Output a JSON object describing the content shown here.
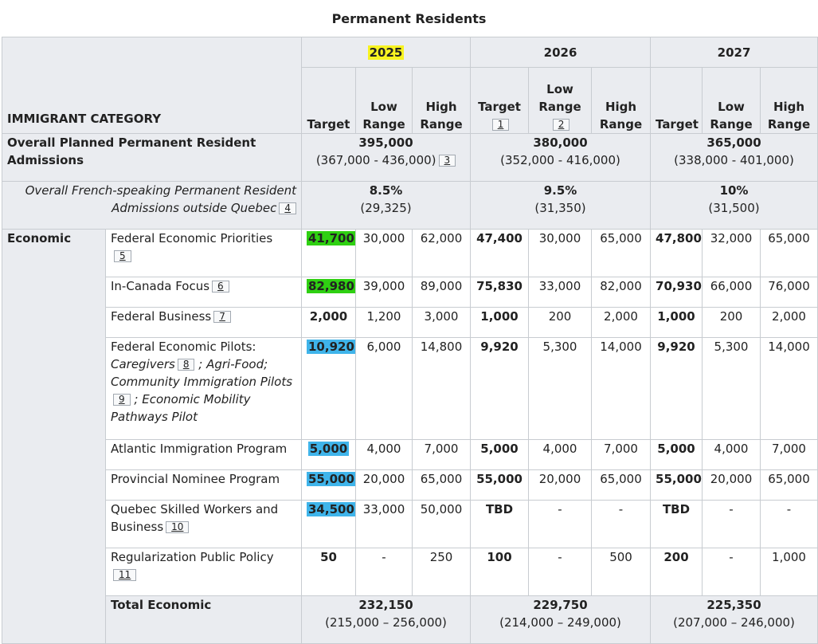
{
  "title": "Permanent Residents",
  "years": [
    "2025",
    "2026",
    "2027"
  ],
  "category_header": "IMMIGRANT CATEGORY",
  "sub_headers": {
    "target": "Target",
    "low": "Low Range",
    "high": "High Range"
  },
  "notes": {
    "n1": "1",
    "n2": "2"
  },
  "overall": {
    "label": "Overall Planned Permanent Resident Admissions",
    "note": "3",
    "values": [
      {
        "main": "395,000",
        "range": "(367,000 - 436,000)"
      },
      {
        "main": "380,000",
        "range": "(352,000 - 416,000)"
      },
      {
        "main": "365,000",
        "range": "(338,000 - 401,000)"
      }
    ]
  },
  "french": {
    "label": "Overall French-speaking Permanent Resident Admissions outside Quebec",
    "note": "4",
    "values": [
      {
        "main": "8.5%",
        "range": "(29,325)"
      },
      {
        "main": "9.5%",
        "range": "(31,350)"
      },
      {
        "main": "10%",
        "range": "(31,500)"
      }
    ]
  },
  "economic": {
    "label": "Economic",
    "rows": [
      {
        "label": "Federal Economic Priorities",
        "note": "5",
        "values": [
          "41,700",
          "30,000",
          "62,000",
          "47,400",
          "30,000",
          "65,000",
          "47,800",
          "32,000",
          "65,000"
        ]
      },
      {
        "label": "In-Canada Focus",
        "note": "6",
        "values": [
          "82,980",
          "39,000",
          "89,000",
          "75,830",
          "33,000",
          "82,000",
          "70,930",
          "66,000",
          "76,000"
        ]
      },
      {
        "label": "Federal Business",
        "note": "7",
        "values": [
          "2,000",
          "1,200",
          "3,000",
          "1,000",
          "200",
          "2,000",
          "1,000",
          "200",
          "2,000"
        ]
      },
      {
        "label": "Federal Economic Pilots:",
        "caregivers": "Caregivers",
        "note": "8",
        "agrifood": "; Agri-Food;",
        "community": "Community Immigration Pilots",
        "note2": "9",
        "mobility": "; Economic Mobility Pathways Pilot",
        "values": [
          "10,920",
          "6,000",
          "14,800",
          "9,920",
          "5,300",
          "14,000",
          "9,920",
          "5,300",
          "14,000"
        ]
      },
      {
        "label": "Atlantic Immigration Program",
        "values": [
          "5,000",
          "4,000",
          "7,000",
          "5,000",
          "4,000",
          "7,000",
          "5,000",
          "4,000",
          "7,000"
        ]
      },
      {
        "label": "Provincial Nominee Program",
        "values": [
          "55,000",
          "20,000",
          "65,000",
          "55,000",
          "20,000",
          "65,000",
          "55,000",
          "20,000",
          "65,000"
        ]
      },
      {
        "label": "Quebec Skilled Workers and Business",
        "note": "10",
        "values": [
          "34,500",
          "33,000",
          "50,000",
          "TBD",
          "-",
          "-",
          "TBD",
          "-",
          "-"
        ]
      },
      {
        "label": "Regularization Public Policy",
        "note": "11",
        "values": [
          "50",
          "-",
          "250",
          "100",
          "-",
          "500",
          "200",
          "-",
          "1,000"
        ]
      }
    ],
    "total": {
      "label": "Total Economic",
      "values": [
        {
          "main": "232,150",
          "range": "(215,000 – 256,000)"
        },
        {
          "main": "229,750",
          "range": "(214,000 – 249,000)"
        },
        {
          "main": "225,350",
          "range": "(207,000 – 246,000)"
        }
      ]
    }
  },
  "highlight_colors": {
    "yellow": "#f7f321",
    "green": "#2fd012",
    "blue": "#3fb4ea"
  }
}
